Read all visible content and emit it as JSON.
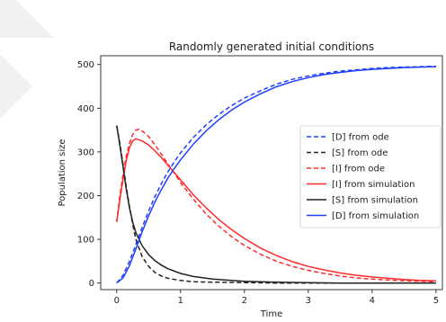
{
  "chart_data": {
    "type": "line",
    "title": "Randomly generated initial conditions",
    "xlabel": "Time",
    "ylabel": "Population size",
    "xlim": [
      -0.25,
      5.1
    ],
    "ylim": [
      -15,
      520
    ],
    "xticks": [
      0,
      1,
      2,
      3,
      4,
      5
    ],
    "yticks": [
      0,
      100,
      200,
      300,
      400,
      500
    ],
    "grid": false,
    "legend_position": "center-right",
    "series": [
      {
        "name": "[D]  from ode",
        "color": "#1f3fff",
        "dash": true,
        "x": [
          0,
          0.1,
          0.2,
          0.3,
          0.4,
          0.5,
          0.6,
          0.7,
          0.8,
          0.9,
          1.0,
          1.2,
          1.4,
          1.6,
          1.8,
          2.0,
          2.25,
          2.5,
          2.75,
          3.0,
          3.25,
          3.5,
          3.75,
          4.0,
          4.25,
          4.5,
          4.75,
          5.0
        ],
        "y": [
          0,
          18,
          50,
          88,
          128,
          165,
          198,
          228,
          254,
          277,
          298,
          333,
          362,
          386,
          406,
          423,
          440,
          455,
          466,
          474,
          480,
          485,
          488,
          491,
          493,
          494,
          495,
          496
        ]
      },
      {
        "name": "[S]  from ode",
        "color": "#222222",
        "dash": true,
        "x": [
          0,
          0.05,
          0.1,
          0.15,
          0.2,
          0.25,
          0.3,
          0.4,
          0.5,
          0.6,
          0.7,
          0.8,
          1.0,
          1.2,
          1.5,
          2.0,
          2.5,
          3.0,
          4.0,
          5.0
        ],
        "y": [
          360,
          320,
          270,
          220,
          175,
          135,
          100,
          60,
          38,
          24,
          16,
          11,
          6,
          3,
          2,
          1,
          0,
          0,
          0,
          0
        ]
      },
      {
        "name": "[I]  from ode",
        "color": "#ff2a2a",
        "dash": true,
        "x": [
          0,
          0.05,
          0.1,
          0.15,
          0.2,
          0.25,
          0.3,
          0.35,
          0.4,
          0.5,
          0.6,
          0.7,
          0.8,
          1.0,
          1.2,
          1.4,
          1.6,
          1.8,
          2.0,
          2.25,
          2.5,
          2.75,
          3.0,
          3.25,
          3.5,
          3.75,
          4.0,
          4.25,
          4.5,
          4.75,
          5.0
        ],
        "y": [
          140,
          200,
          250,
          290,
          320,
          340,
          350,
          352,
          348,
          335,
          316,
          295,
          273,
          230,
          192,
          158,
          130,
          106,
          86,
          66,
          50,
          38,
          29,
          22,
          16,
          12,
          9,
          7,
          5,
          4,
          3
        ]
      },
      {
        "name": "[I] from simulation",
        "color": "#ff2a2a",
        "dash": false,
        "x": [
          0,
          0.05,
          0.1,
          0.15,
          0.2,
          0.25,
          0.3,
          0.4,
          0.5,
          0.6,
          0.7,
          0.8,
          1.0,
          1.2,
          1.4,
          1.6,
          1.8,
          2.0,
          2.25,
          2.5,
          2.75,
          3.0,
          3.25,
          3.5,
          3.75,
          4.0,
          4.25,
          4.5,
          4.75,
          5.0
        ],
        "y": [
          140,
          190,
          240,
          280,
          310,
          325,
          330,
          325,
          316,
          302,
          287,
          270,
          236,
          202,
          172,
          145,
          122,
          102,
          80,
          63,
          49,
          38,
          30,
          23,
          18,
          14,
          11,
          8,
          6,
          5
        ]
      },
      {
        "name": "[S] from simulation",
        "color": "#222222",
        "dash": false,
        "x": [
          0,
          0.05,
          0.1,
          0.15,
          0.2,
          0.25,
          0.3,
          0.4,
          0.5,
          0.6,
          0.7,
          0.8,
          1.0,
          1.2,
          1.5,
          2.0,
          2.5,
          3.0,
          3.5,
          4.0,
          4.5,
          5.0
        ],
        "y": [
          360,
          315,
          265,
          215,
          172,
          140,
          115,
          85,
          65,
          51,
          41,
          33,
          22,
          15,
          9,
          4,
          2,
          1,
          0,
          0,
          0,
          0
        ]
      },
      {
        "name": "[D] from simulation",
        "color": "#1f3fff",
        "dash": false,
        "x": [
          0,
          0.1,
          0.2,
          0.3,
          0.4,
          0.5,
          0.6,
          0.7,
          0.8,
          0.9,
          1.0,
          1.2,
          1.4,
          1.6,
          1.8,
          2.0,
          2.25,
          2.5,
          2.75,
          3.0,
          3.25,
          3.5,
          3.75,
          4.0,
          4.25,
          4.5,
          4.75,
          5.0
        ],
        "y": [
          0,
          12,
          40,
          78,
          118,
          154,
          186,
          214,
          240,
          262,
          282,
          318,
          348,
          374,
          396,
          414,
          433,
          449,
          461,
          470,
          477,
          482,
          486,
          489,
          491,
          493,
          494,
          495
        ]
      }
    ]
  }
}
